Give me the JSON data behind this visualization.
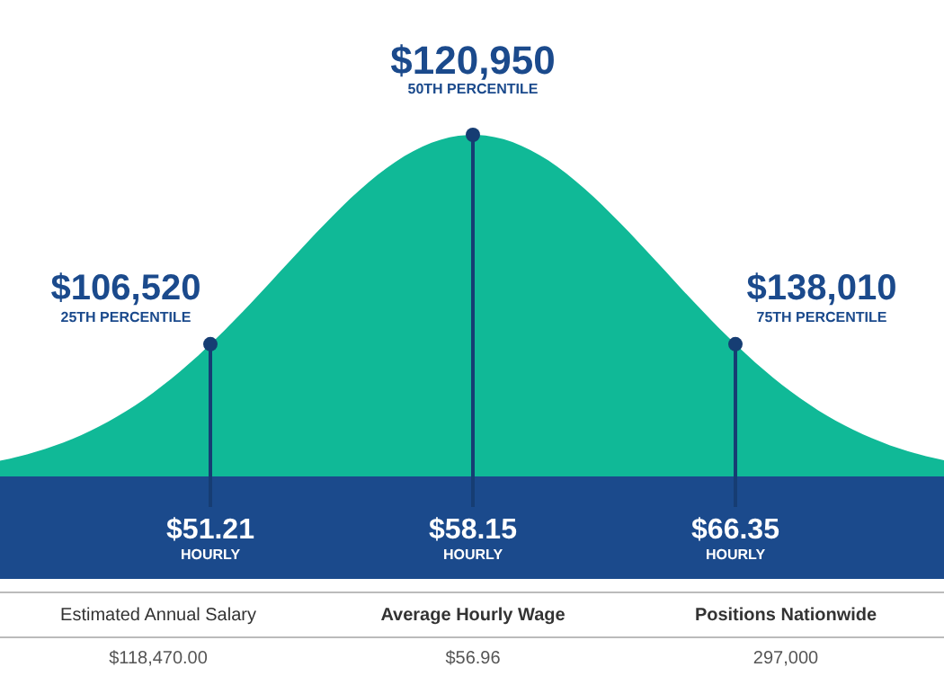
{
  "chart_data": {
    "type": "other",
    "categories": [
      "25TH PERCENTILE",
      "50TH PERCENTILE",
      "75TH PERCENTILE"
    ],
    "series": [
      {
        "values": [
          106520,
          120950,
          138010
        ],
        "value_labels": [
          "$106,520",
          "$120,950",
          "$138,010"
        ]
      },
      {
        "values": [
          51.21,
          58.15,
          66.35
        ],
        "value_labels": [
          "$51.21",
          "$58.15",
          "$66.35"
        ]
      }
    ],
    "annotations": [
      "HOURLY",
      "HOURLY",
      "HOURLY",
      "Estimated Annual Salary",
      "Average Hourly Wage",
      "Positions Nationwide",
      "$118,470.00",
      "$56.96",
      "297,000"
    ]
  }
}
